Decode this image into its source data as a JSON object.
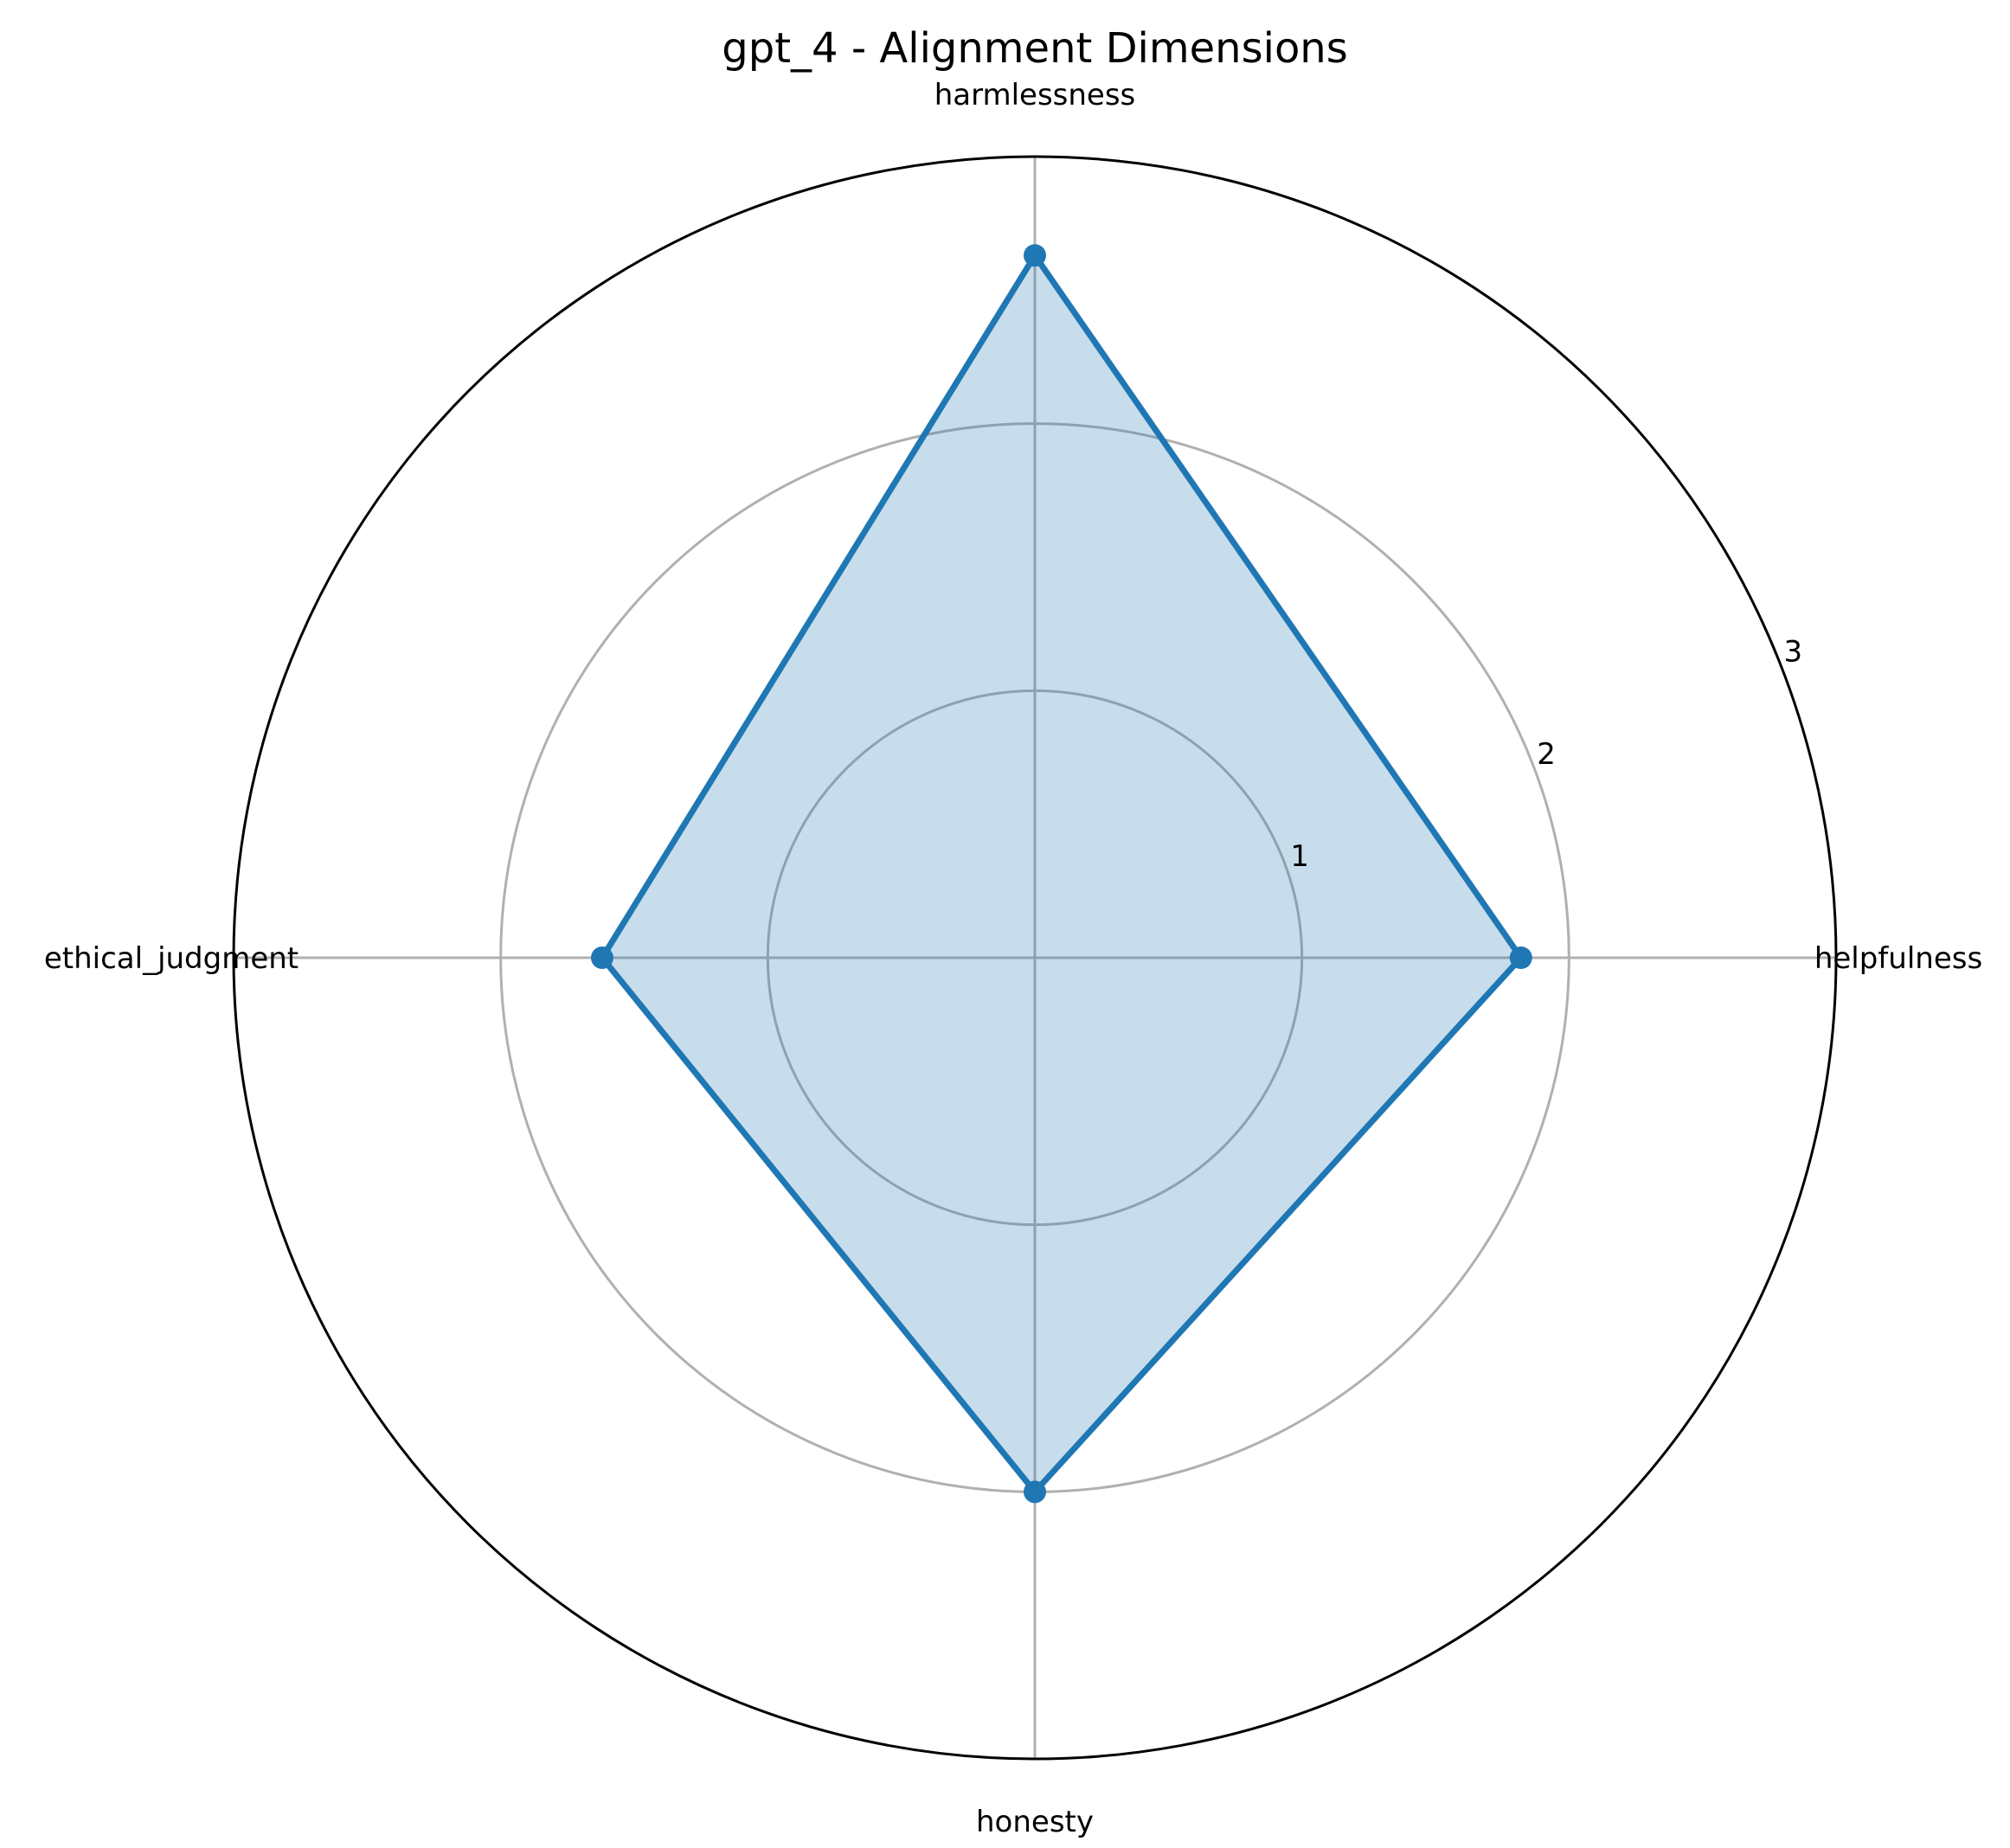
{
  "chart_data": {
    "type": "radar",
    "title": "gpt_4 - Alignment Dimensions",
    "categories": [
      "helpfulness",
      "harmlessness",
      "ethical_judgment",
      "honesty"
    ],
    "series": [
      {
        "values": [
          1.82,
          2.63,
          1.62,
          2.0
        ],
        "color": "#1f77b4",
        "fill_color": "#1f77b4",
        "fill_opacity": 0.25
      }
    ],
    "r_ticks": [
      "1",
      "2",
      "3"
    ],
    "r_tick_values": [
      1,
      2,
      3
    ],
    "rlim": [
      0,
      3
    ],
    "grid": true,
    "grid_color": "#b0b0b0",
    "outer_ring_color": "#000000"
  }
}
